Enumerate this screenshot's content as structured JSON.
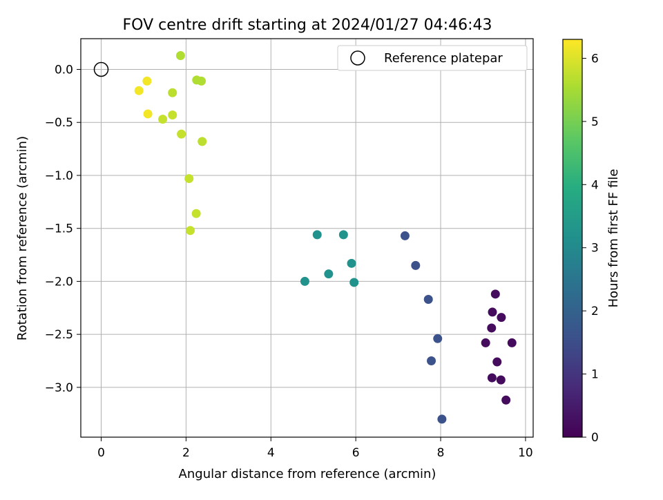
{
  "chart_data": {
    "type": "scatter",
    "title": "FOV centre drift starting at 2024/01/27 04:46:43",
    "xlabel": "Angular distance from reference (arcmin)",
    "ylabel": "Rotation from reference (arcmin)",
    "xlim": [
      -0.48,
      10.18
    ],
    "ylim": [
      -3.47,
      0.29
    ],
    "xticks": [
      0,
      2,
      4,
      6,
      8,
      10
    ],
    "xtick_labels": [
      "0",
      "2",
      "4",
      "6",
      "8",
      "10"
    ],
    "yticks": [
      0.0,
      -0.5,
      -1.0,
      -1.5,
      -2.0,
      -2.5,
      -3.0
    ],
    "ytick_labels": [
      "0.0",
      "−0.5",
      "−1.0",
      "−1.5",
      "−2.0",
      "−2.5",
      "−3.0"
    ],
    "grid": true,
    "legend": {
      "position": "top-right",
      "entries": [
        "Reference platepar"
      ]
    },
    "reference_point": {
      "x": 0,
      "y": 0
    },
    "colorbar": {
      "label": "Hours from first FF file",
      "colormap": "viridis",
      "range": [
        0,
        6.3
      ],
      "ticks": [
        0,
        1,
        2,
        3,
        4,
        5,
        6
      ],
      "tick_labels": [
        "0",
        "1",
        "2",
        "3",
        "4",
        "5",
        "6"
      ]
    },
    "points": [
      {
        "x": 9.29,
        "y": -2.12,
        "c": 0.2
      },
      {
        "x": 9.22,
        "y": -2.29,
        "c": 0.2
      },
      {
        "x": 9.43,
        "y": -2.34,
        "c": 0.2
      },
      {
        "x": 9.2,
        "y": -2.44,
        "c": 0.2
      },
      {
        "x": 9.06,
        "y": -2.58,
        "c": 0.2
      },
      {
        "x": 9.68,
        "y": -2.58,
        "c": 0.2
      },
      {
        "x": 9.33,
        "y": -2.76,
        "c": 0.2
      },
      {
        "x": 9.21,
        "y": -2.91,
        "c": 0.2
      },
      {
        "x": 9.42,
        "y": -2.93,
        "c": 0.2
      },
      {
        "x": 9.54,
        "y": -3.12,
        "c": 0.2
      },
      {
        "x": 7.16,
        "y": -1.57,
        "c": 1.6
      },
      {
        "x": 7.41,
        "y": -1.85,
        "c": 1.6
      },
      {
        "x": 7.71,
        "y": -2.17,
        "c": 1.6
      },
      {
        "x": 7.93,
        "y": -2.54,
        "c": 1.6
      },
      {
        "x": 7.78,
        "y": -2.75,
        "c": 1.6
      },
      {
        "x": 8.03,
        "y": -3.3,
        "c": 1.6
      },
      {
        "x": 5.09,
        "y": -1.56,
        "c": 3.2
      },
      {
        "x": 5.71,
        "y": -1.56,
        "c": 3.2
      },
      {
        "x": 5.9,
        "y": -1.83,
        "c": 3.2
      },
      {
        "x": 5.36,
        "y": -1.93,
        "c": 3.2
      },
      {
        "x": 5.96,
        "y": -2.01,
        "c": 3.2
      },
      {
        "x": 4.8,
        "y": -2.0,
        "c": 3.2
      },
      {
        "x": 1.87,
        "y": 0.13,
        "c": 5.6
      },
      {
        "x": 2.25,
        "y": -0.1,
        "c": 5.6
      },
      {
        "x": 2.36,
        "y": -0.11,
        "c": 5.6
      },
      {
        "x": 1.68,
        "y": -0.22,
        "c": 5.7
      },
      {
        "x": 1.68,
        "y": -0.43,
        "c": 5.8
      },
      {
        "x": 1.45,
        "y": -0.47,
        "c": 5.8
      },
      {
        "x": 1.89,
        "y": -0.61,
        "c": 5.8
      },
      {
        "x": 2.38,
        "y": -0.68,
        "c": 5.7
      },
      {
        "x": 2.07,
        "y": -1.03,
        "c": 5.8
      },
      {
        "x": 2.24,
        "y": -1.36,
        "c": 5.8
      },
      {
        "x": 2.1,
        "y": -1.52,
        "c": 5.8
      },
      {
        "x": 1.08,
        "y": -0.11,
        "c": 6.2
      },
      {
        "x": 0.89,
        "y": -0.2,
        "c": 6.2
      },
      {
        "x": 1.1,
        "y": -0.42,
        "c": 6.2
      }
    ]
  }
}
